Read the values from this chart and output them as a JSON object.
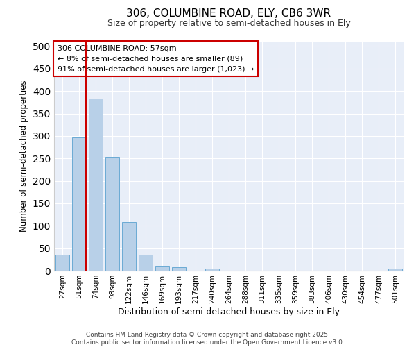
{
  "title_line1": "306, COLUMBINE ROAD, ELY, CB6 3WR",
  "title_line2": "Size of property relative to semi-detached houses in Ely",
  "xlabel": "Distribution of semi-detached houses by size in Ely",
  "ylabel": "Number of semi-detached properties",
  "categories": [
    "27sqm",
    "51sqm",
    "74sqm",
    "98sqm",
    "122sqm",
    "146sqm",
    "169sqm",
    "193sqm",
    "217sqm",
    "240sqm",
    "264sqm",
    "288sqm",
    "311sqm",
    "335sqm",
    "359sqm",
    "383sqm",
    "406sqm",
    "430sqm",
    "454sqm",
    "477sqm",
    "501sqm"
  ],
  "values": [
    35,
    297,
    383,
    254,
    108,
    35,
    10,
    7,
    0,
    4,
    0,
    0,
    0,
    0,
    0,
    0,
    0,
    0,
    0,
    0,
    4
  ],
  "bar_color": "#b8d0e8",
  "bar_edge_color": "#6aaad4",
  "vline_color": "#cc0000",
  "vline_x_index": 1,
  "annotation_text_line1": "306 COLUMBINE ROAD: 57sqm",
  "annotation_text_line2": "← 8% of semi-detached houses are smaller (89)",
  "annotation_text_line3": "91% of semi-detached houses are larger (1,023) →",
  "annotation_box_color": "#cc0000",
  "background_color": "#e8eef8",
  "grid_color": "#ffffff",
  "footer_line1": "Contains HM Land Registry data © Crown copyright and database right 2025.",
  "footer_line2": "Contains public sector information licensed under the Open Government Licence v3.0.",
  "ylim": [
    0,
    510
  ],
  "yticks": [
    0,
    50,
    100,
    150,
    200,
    250,
    300,
    350,
    400,
    450,
    500
  ]
}
